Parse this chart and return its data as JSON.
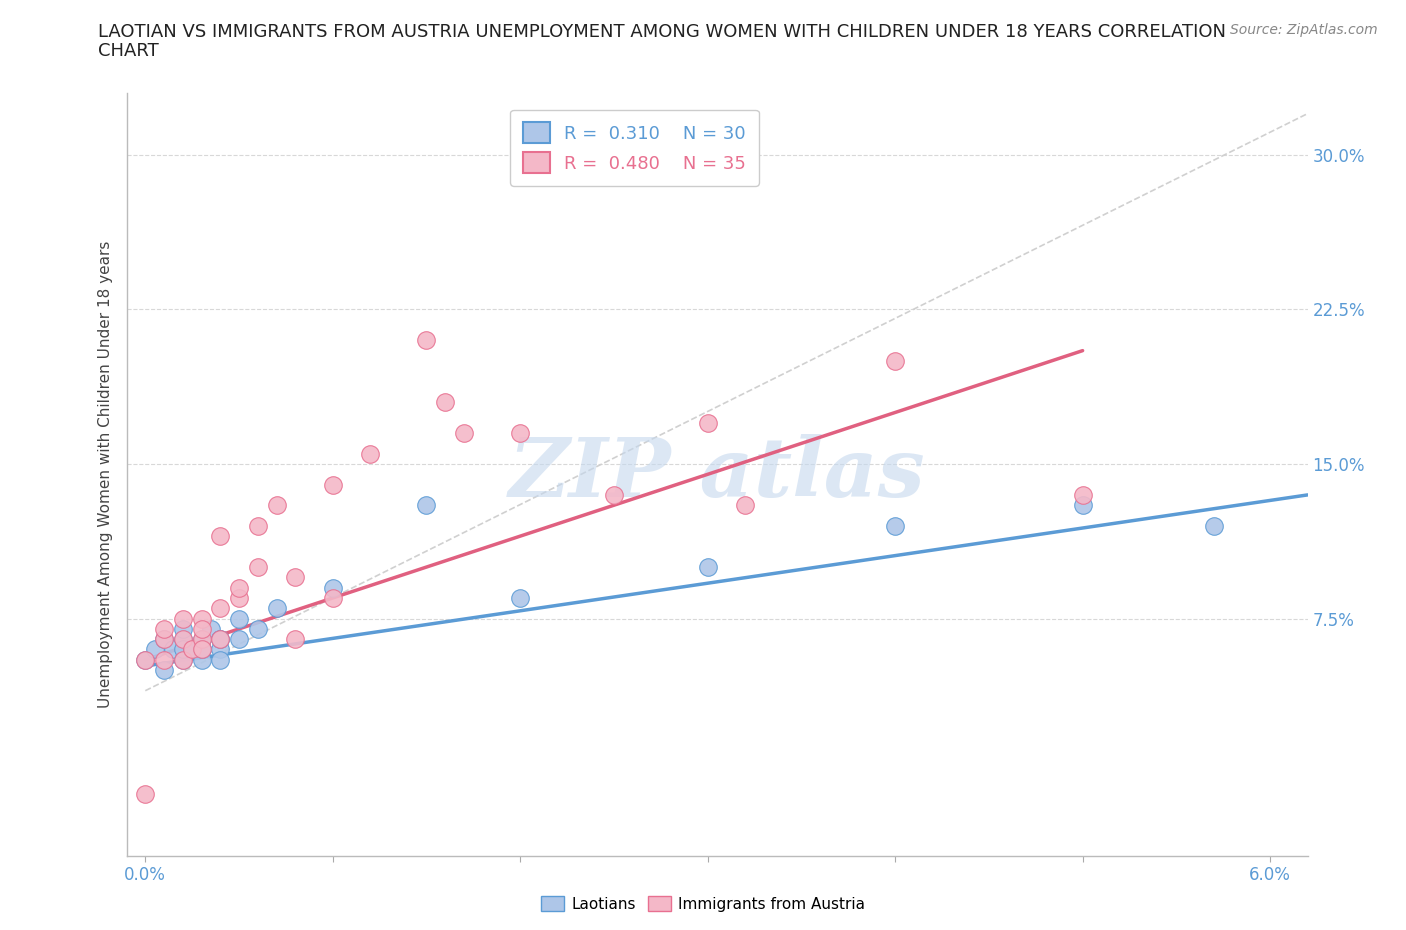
{
  "title_line1": "LAOTIAN VS IMMIGRANTS FROM AUSTRIA UNEMPLOYMENT AMONG WOMEN WITH CHILDREN UNDER 18 YEARS CORRELATION",
  "title_line2": "CHART",
  "source": "Source: ZipAtlas.com",
  "ylabel": "Unemployment Among Women with Children Under 18 years",
  "xlim": [
    -0.001,
    0.062
  ],
  "ylim": [
    -0.04,
    0.33
  ],
  "yticks": [
    0.075,
    0.15,
    0.225,
    0.3
  ],
  "ytick_labels": [
    "7.5%",
    "15.0%",
    "22.5%",
    "30.0%"
  ],
  "xtick_vals": [
    0.0,
    0.01,
    0.02,
    0.03,
    0.04,
    0.05,
    0.06
  ],
  "xtick_labels": [
    "0.0%",
    "",
    "",
    "",
    "",
    "",
    "6.0%"
  ],
  "laotian_R": 0.31,
  "laotian_N": 30,
  "austria_R": 0.48,
  "austria_N": 35,
  "laotian_color": "#aec6e8",
  "laotian_edge": "#5b9bd5",
  "austria_color": "#f4b8c8",
  "austria_edge": "#e87090",
  "laotian_line_color": "#5b9bd5",
  "austria_line_color": "#e06080",
  "dash_color": "#d0d0d0",
  "grid_color": "#d8d8d8",
  "laotian_x": [
    0.0,
    0.0005,
    0.001,
    0.001,
    0.0015,
    0.002,
    0.002,
    0.002,
    0.002,
    0.0025,
    0.003,
    0.003,
    0.003,
    0.003,
    0.0035,
    0.004,
    0.004,
    0.004,
    0.004,
    0.005,
    0.005,
    0.006,
    0.007,
    0.01,
    0.015,
    0.02,
    0.03,
    0.04,
    0.05,
    0.057
  ],
  "laotian_y": [
    0.055,
    0.06,
    0.05,
    0.065,
    0.06,
    0.055,
    0.065,
    0.07,
    0.06,
    0.06,
    0.06,
    0.065,
    0.055,
    0.06,
    0.07,
    0.065,
    0.06,
    0.065,
    0.055,
    0.065,
    0.075,
    0.07,
    0.08,
    0.09,
    0.13,
    0.085,
    0.1,
    0.12,
    0.13,
    0.12
  ],
  "austria_x": [
    0.0,
    0.0,
    0.001,
    0.001,
    0.001,
    0.002,
    0.002,
    0.002,
    0.0025,
    0.003,
    0.003,
    0.003,
    0.003,
    0.004,
    0.004,
    0.004,
    0.005,
    0.005,
    0.006,
    0.006,
    0.007,
    0.008,
    0.008,
    0.01,
    0.01,
    0.012,
    0.015,
    0.016,
    0.017,
    0.02,
    0.025,
    0.03,
    0.032,
    0.04,
    0.05
  ],
  "austria_y": [
    -0.01,
    0.055,
    0.065,
    0.07,
    0.055,
    0.075,
    0.065,
    0.055,
    0.06,
    0.065,
    0.075,
    0.07,
    0.06,
    0.065,
    0.08,
    0.115,
    0.085,
    0.09,
    0.1,
    0.12,
    0.13,
    0.065,
    0.095,
    0.14,
    0.085,
    0.155,
    0.21,
    0.18,
    0.165,
    0.165,
    0.135,
    0.17,
    0.13,
    0.2,
    0.135
  ],
  "lao_trend_x": [
    0.0,
    0.062
  ],
  "lao_trend_y": [
    0.052,
    0.135
  ],
  "aut_trend_x": [
    0.0,
    0.05
  ],
  "aut_trend_y": [
    0.055,
    0.205
  ],
  "dash_line_x": [
    0.0,
    0.062
  ],
  "dash_line_y": [
    0.04,
    0.32
  ],
  "watermark_text": "ZIP atlas",
  "watermark_color": "#c5d8ee",
  "bg_color": "#ffffff",
  "title_fontsize": 13,
  "label_fontsize": 11,
  "tick_fontsize": 12,
  "legend_fontsize": 13
}
